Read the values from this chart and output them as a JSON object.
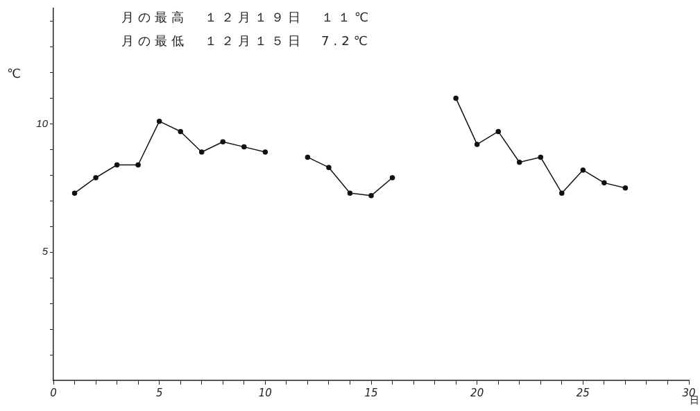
{
  "chart_data": {
    "type": "line",
    "xlabel": "日",
    "ylabel": "℃",
    "annotations": [
      "月の最高　１２月１９日　１１℃",
      "月の最低　１２月１５日　7.2℃"
    ],
    "x": [
      1,
      2,
      3,
      4,
      5,
      6,
      7,
      8,
      9,
      10,
      11,
      12,
      13,
      14,
      15,
      16,
      17,
      18,
      19,
      20,
      21,
      22,
      23,
      24,
      25,
      26,
      27
    ],
    "series": [
      {
        "color": "#111111",
        "values": [
          7.3,
          7.9,
          8.4,
          8.4,
          10.1,
          9.7,
          8.9,
          9.3,
          9.1,
          8.9,
          null,
          8.7,
          8.3,
          7.3,
          7.2,
          7.9,
          null,
          null,
          11,
          9.2,
          9.7,
          8.5,
          8.7,
          7.3,
          8.2,
          7.7,
          7.5
        ]
      }
    ],
    "xlim": [
      0,
      30
    ],
    "xticks": [
      0,
      {
        "value": 1,
        "label": null
      },
      {
        "value": 2,
        "label": null
      },
      {
        "value": 3,
        "label": null
      },
      {
        "value": 4,
        "label": null
      },
      5,
      {
        "value": 6,
        "label": null
      },
      {
        "value": 7,
        "label": null
      },
      {
        "value": 8,
        "label": null
      },
      {
        "value": 9,
        "label": null
      },
      10,
      {
        "value": 11,
        "label": null
      },
      {
        "value": 12,
        "label": null
      },
      {
        "value": 13,
        "label": null
      },
      {
        "value": 14,
        "label": null
      },
      15,
      {
        "value": 16,
        "label": null
      },
      {
        "value": 17,
        "label": null
      },
      {
        "value": 18,
        "label": null
      },
      {
        "value": 19,
        "label": null
      },
      20,
      {
        "value": 21,
        "label": null
      },
      {
        "value": 22,
        "label": null
      },
      {
        "value": 23,
        "label": null
      },
      {
        "value": 24,
        "label": null
      },
      25,
      {
        "value": 26,
        "label": null
      },
      {
        "value": 27,
        "label": null
      },
      {
        "value": 28,
        "label": null
      },
      {
        "value": 29,
        "label": null
      },
      30
    ],
    "ylim": [
      0,
      14.5
    ],
    "yticks": [
      {
        "value": 1,
        "label": null
      },
      {
        "value": 2,
        "label": null
      },
      {
        "value": 3,
        "label": null
      },
      {
        "value": 4,
        "label": null
      },
      5,
      {
        "value": 6,
        "label": null
      },
      {
        "value": 7,
        "label": null
      },
      {
        "value": 8,
        "label": null
      },
      {
        "value": 9,
        "label": null
      },
      10,
      {
        "value": 11,
        "label": null
      },
      {
        "value": 12,
        "label": null
      },
      {
        "value": 13,
        "label": null
      },
      {
        "value": 14,
        "label": null
      }
    ],
    "grid": false,
    "legend": false,
    "marker": "circle",
    "line_style": "solid"
  }
}
